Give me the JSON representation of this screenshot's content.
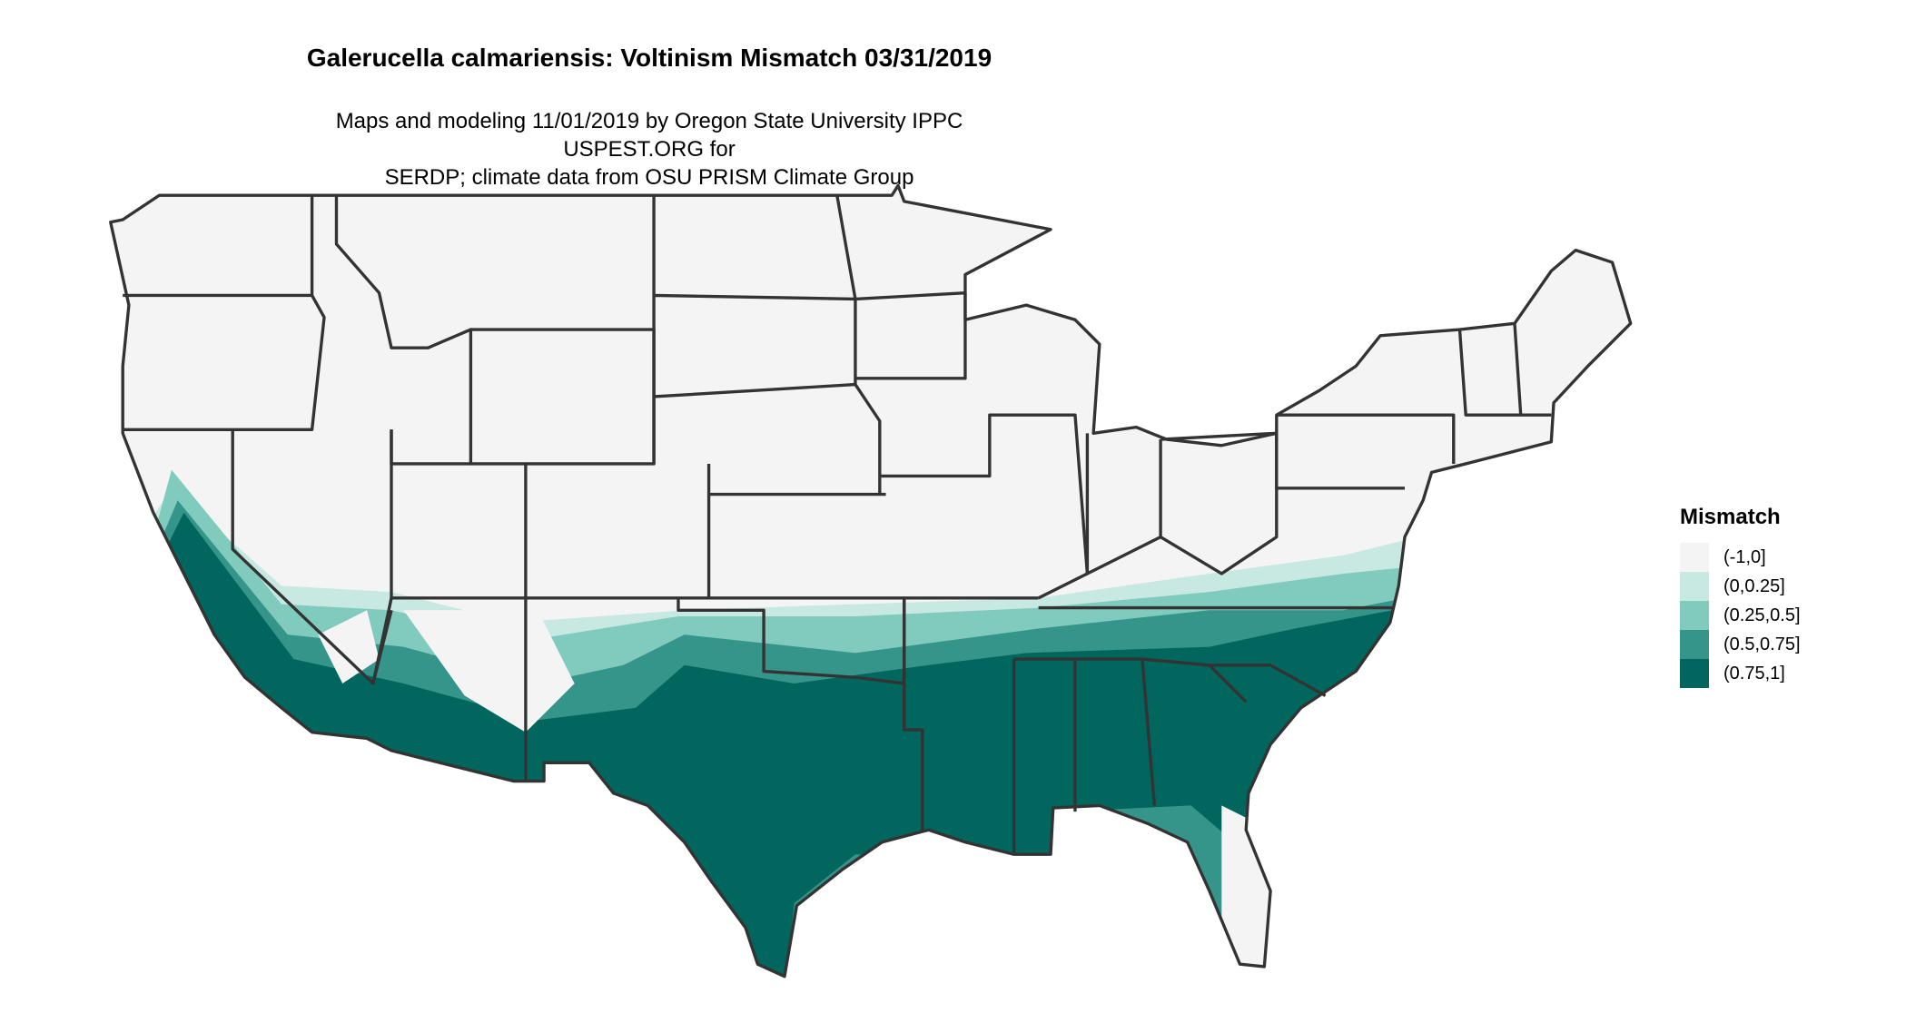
{
  "title": "Galerucella calmariensis: Voltinism Mismatch 03/31/2019",
  "subtitle_line1": "Maps and modeling 11/01/2019 by Oregon State University IPPC USPEST.ORG for",
  "subtitle_line2": "SERDP; climate data from OSU PRISM Climate Group",
  "map": {
    "region": "Contiguous United States",
    "state_border_color": "#333333",
    "background_fill": "#f4f4f4"
  },
  "legend": {
    "title": "Mismatch",
    "items": [
      {
        "label": "(-1,0]",
        "color": "#f4f4f4"
      },
      {
        "label": "(0,0.25]",
        "color": "#c7e9e2"
      },
      {
        "label": "(0.25,0.5]",
        "color": "#80cbbd"
      },
      {
        "label": "(0.5,0.75]",
        "color": "#36958a"
      },
      {
        "label": "(0.75,1]",
        "color": "#01665e"
      }
    ]
  }
}
